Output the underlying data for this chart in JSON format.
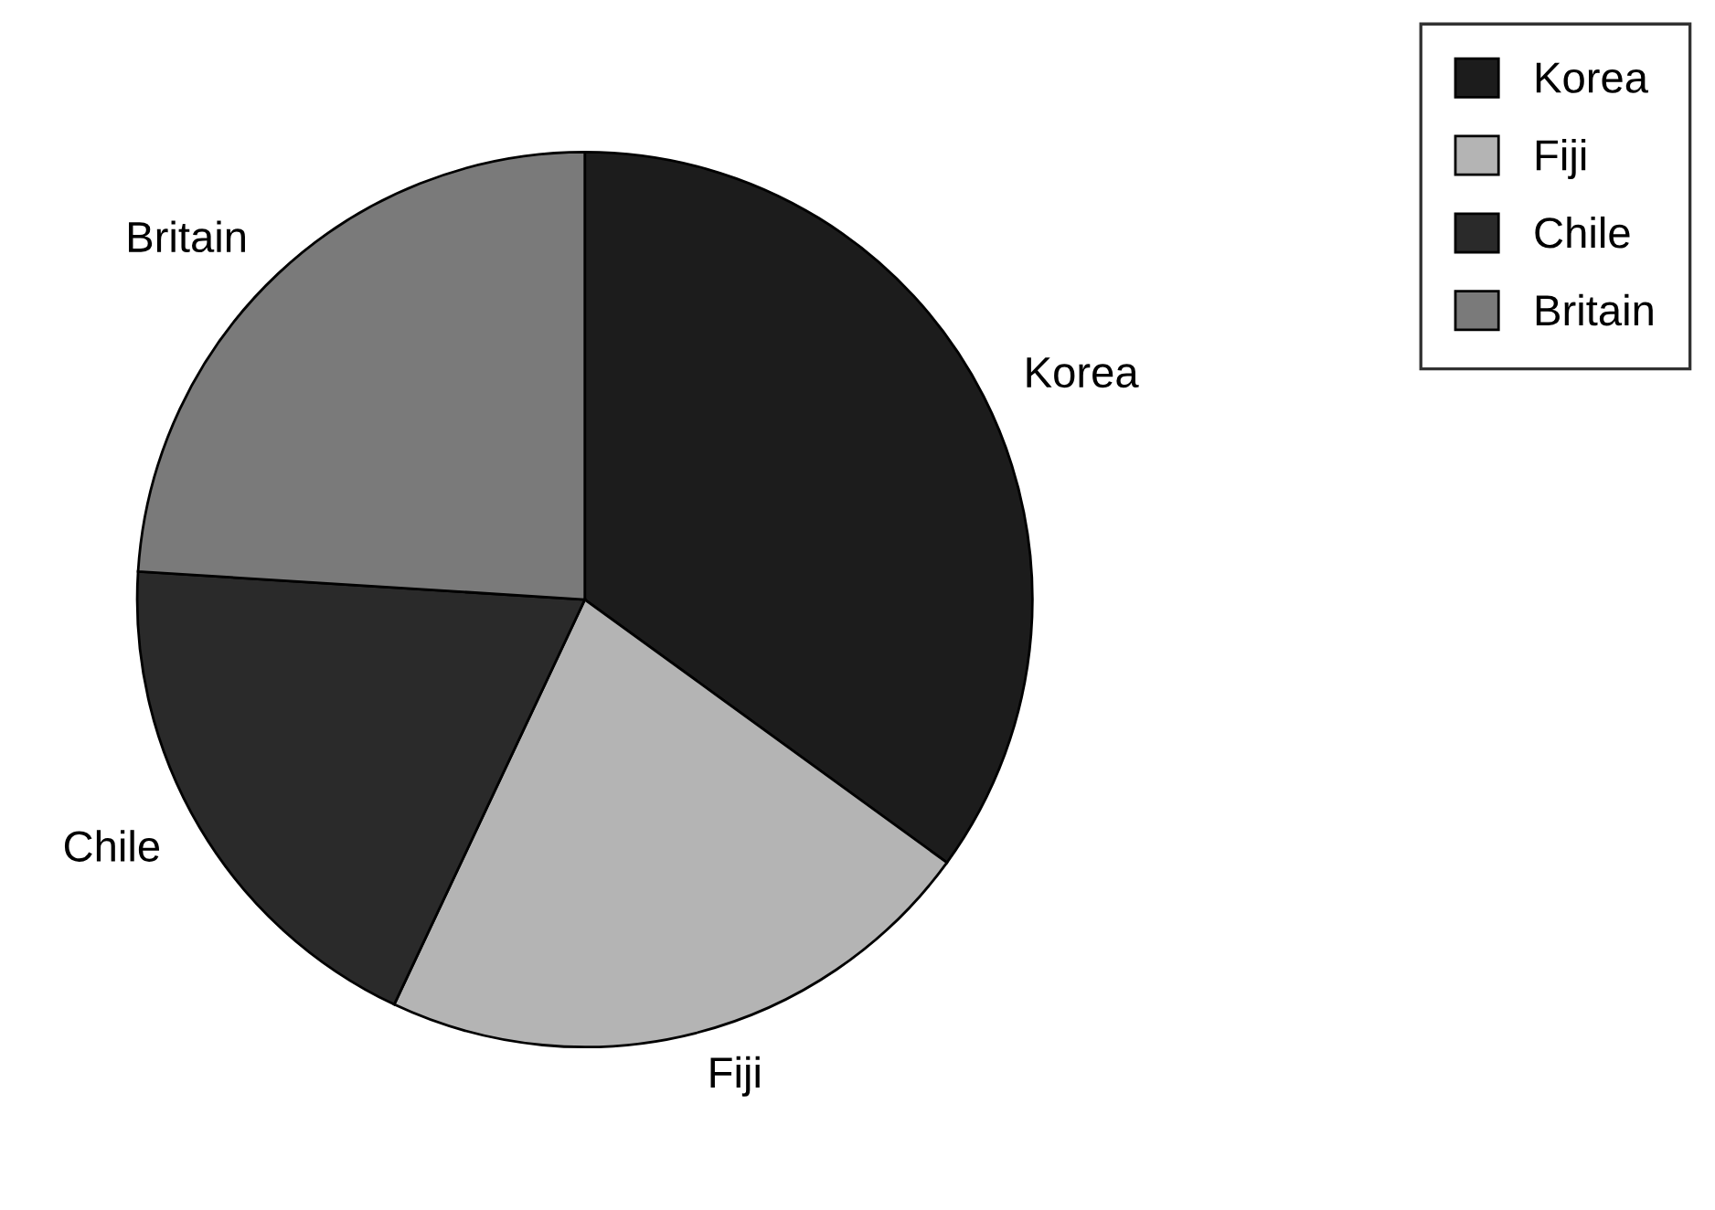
{
  "chart_data": {
    "type": "pie",
    "categories": [
      "Korea",
      "Fiji",
      "Chile",
      "Britain"
    ],
    "values": [
      35,
      22,
      19,
      24
    ],
    "colors": [
      "#1c1c1c",
      "#b4b4b4",
      "#2a2a2a",
      "#7a7a7a"
    ],
    "legend": "top right"
  }
}
